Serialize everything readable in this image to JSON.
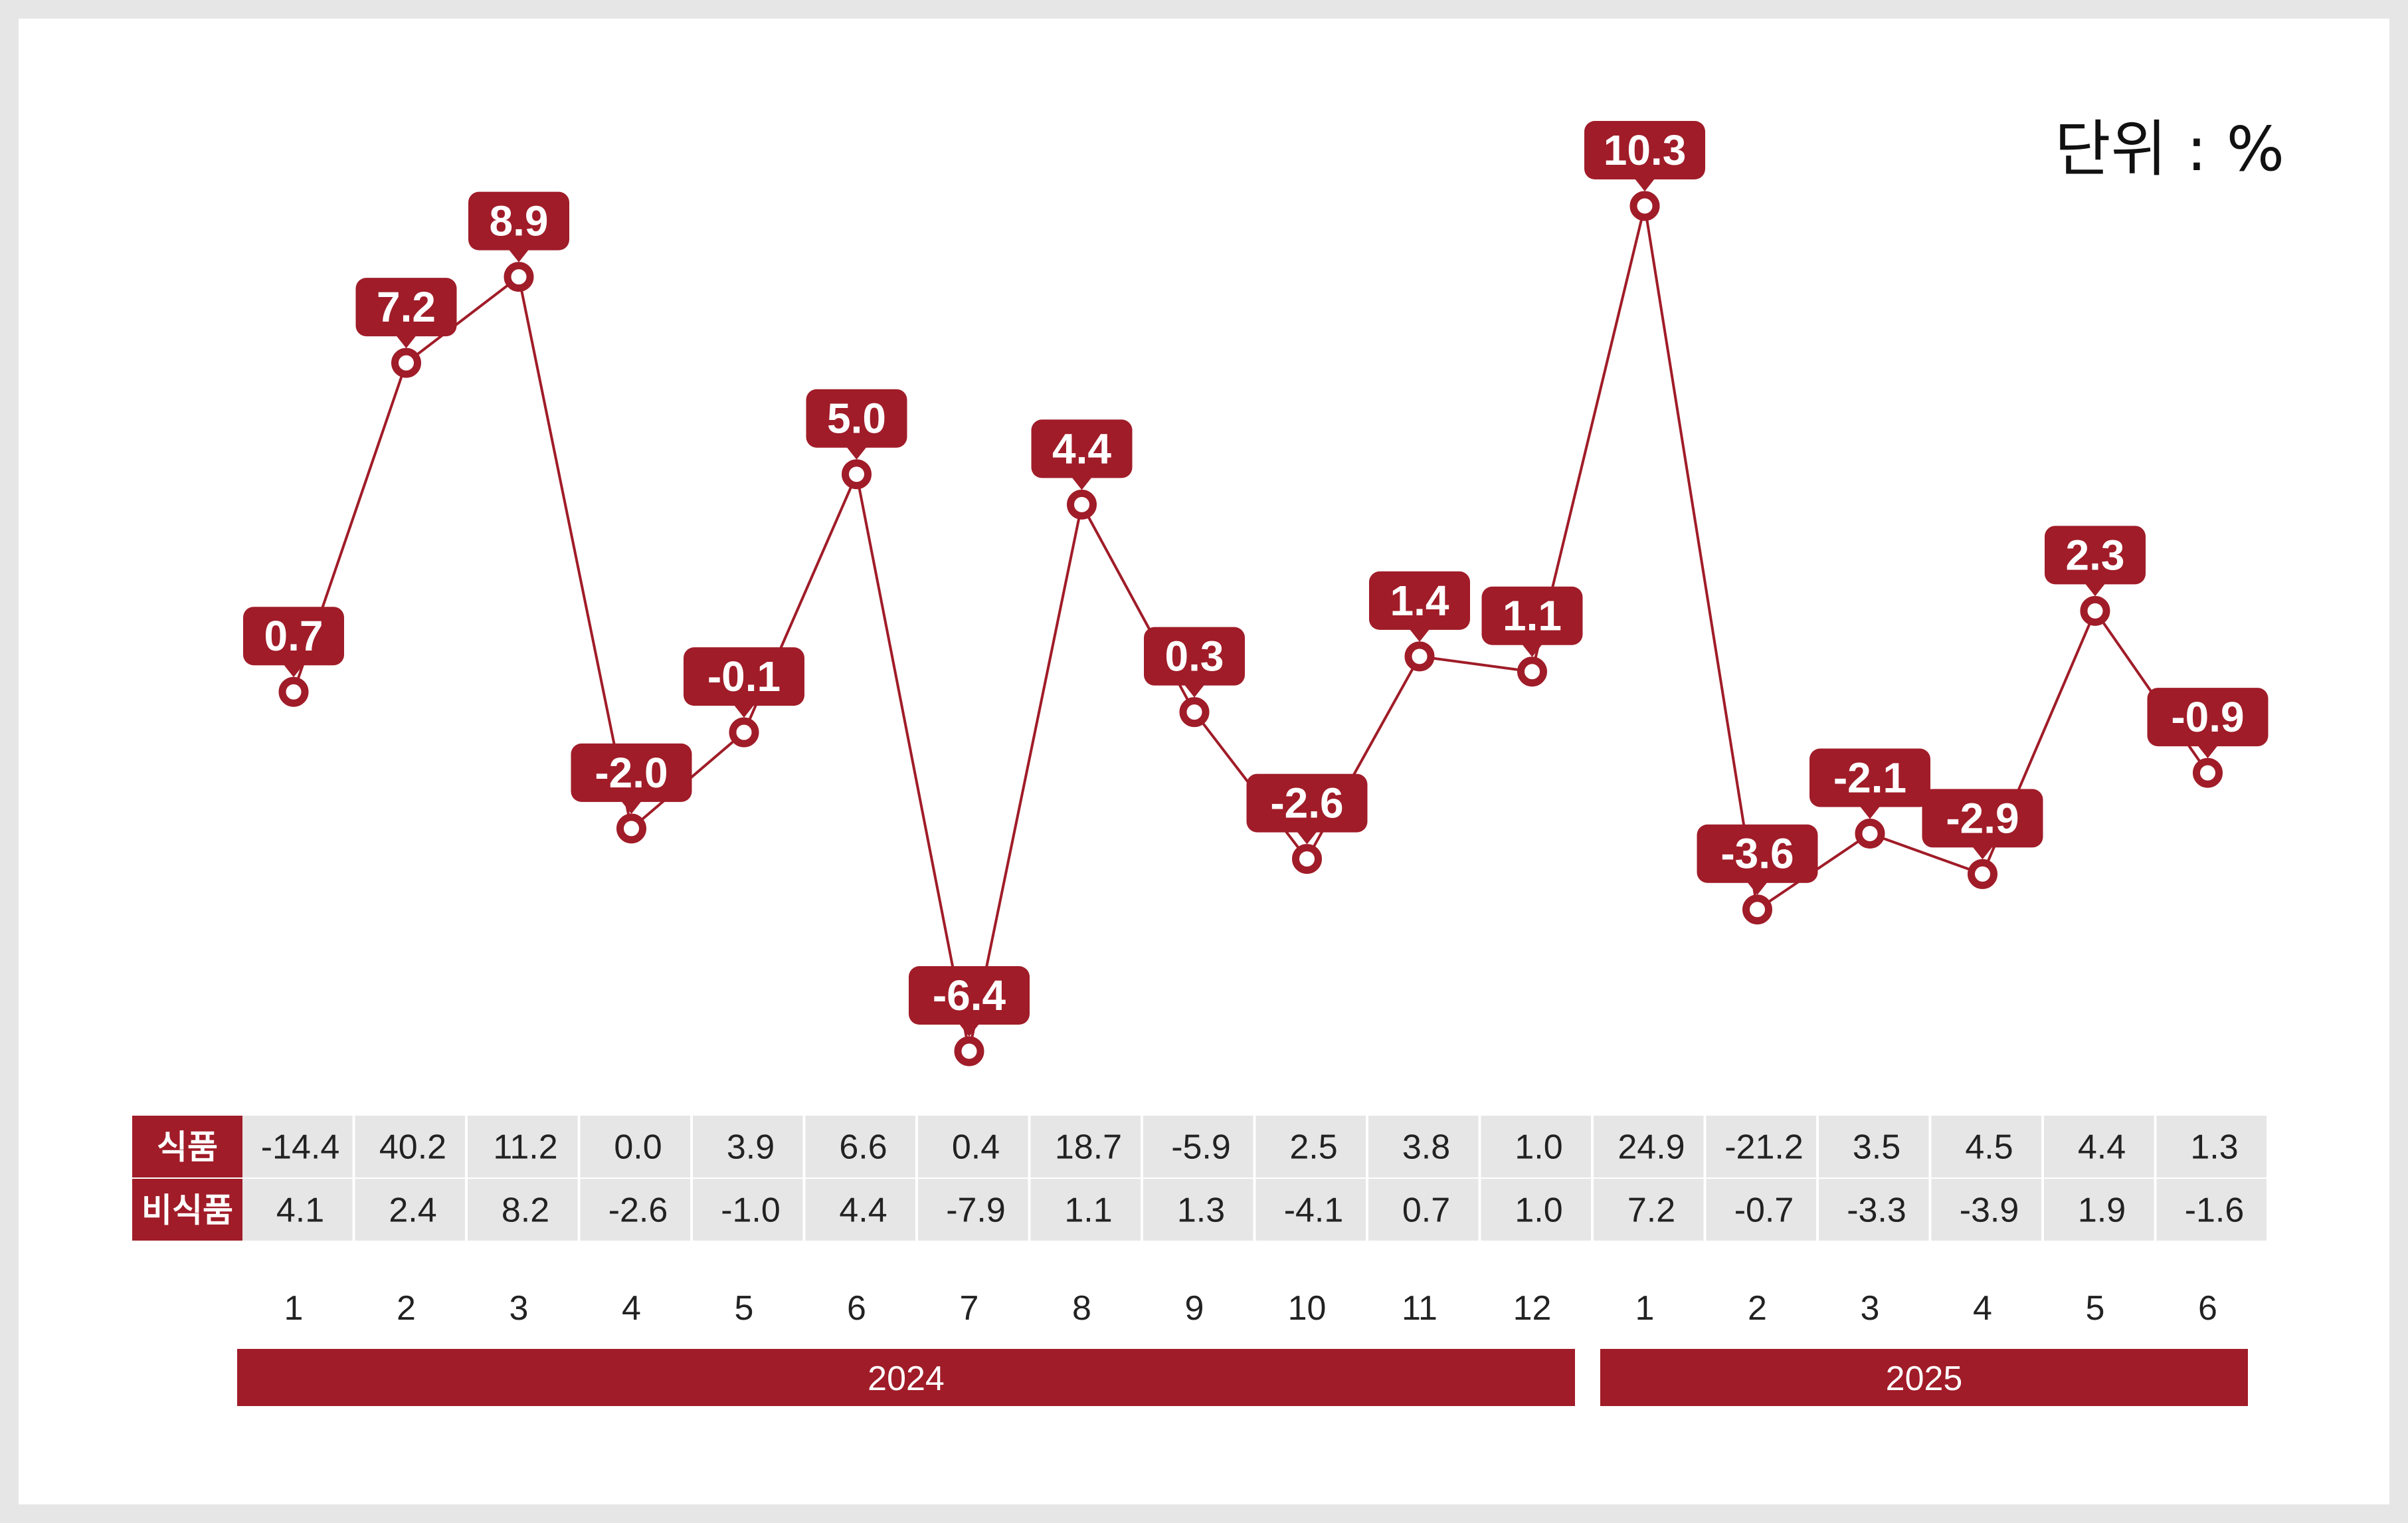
{
  "unit_label": "단위 : %",
  "colors": {
    "accent": "#a01c28",
    "table_cell": "#e6e6e6",
    "background": "#ffffff",
    "frame": "#e6e6e6"
  },
  "chart_data": {
    "type": "line",
    "categories": [
      "1",
      "2",
      "3",
      "4",
      "5",
      "6",
      "7",
      "8",
      "9",
      "10",
      "11",
      "12",
      "1",
      "2",
      "3",
      "4",
      "5",
      "6"
    ],
    "year_groups": [
      {
        "label": "2024",
        "months": 12
      },
      {
        "label": "2025",
        "months": 6
      }
    ],
    "series": [
      {
        "values": [
          0.7,
          7.2,
          8.9,
          -2.0,
          -0.1,
          5.0,
          -6.4,
          4.4,
          0.3,
          -2.6,
          1.4,
          1.1,
          10.3,
          -3.6,
          -2.1,
          -2.9,
          2.3,
          -0.9
        ],
        "labels": [
          "0.7",
          "7.2",
          "8.9",
          "-2.0",
          "-0.1",
          "5.0",
          "-6.4",
          "4.4",
          "0.3",
          "-2.6",
          "1.4",
          "1.1",
          "10.3",
          "-3.6",
          "-2.1",
          "-2.9",
          "2.3",
          "-0.9"
        ],
        "color": "#a01c28"
      }
    ],
    "ylim": [
      -6.4,
      10.3
    ],
    "table": {
      "rows": [
        {
          "name": "식품",
          "values": [
            "-14.4",
            "40.2",
            "11.2",
            "0.0",
            "3.9",
            "6.6",
            "0.4",
            "18.7",
            "-5.9",
            "2.5",
            "3.8",
            "1.0",
            "24.9",
            "-21.2",
            "3.5",
            "4.5",
            "4.4",
            "1.3"
          ]
        },
        {
          "name": "비식품",
          "values": [
            "4.1",
            "2.4",
            "8.2",
            "-2.6",
            "-1.0",
            "4.4",
            "-7.9",
            "1.1",
            "1.3",
            "-4.1",
            "0.7",
            "1.0",
            "7.2",
            "-0.7",
            "-3.3",
            "-3.9",
            "1.9",
            "-1.6"
          ]
        }
      ]
    },
    "grid": false,
    "legend": "none"
  }
}
